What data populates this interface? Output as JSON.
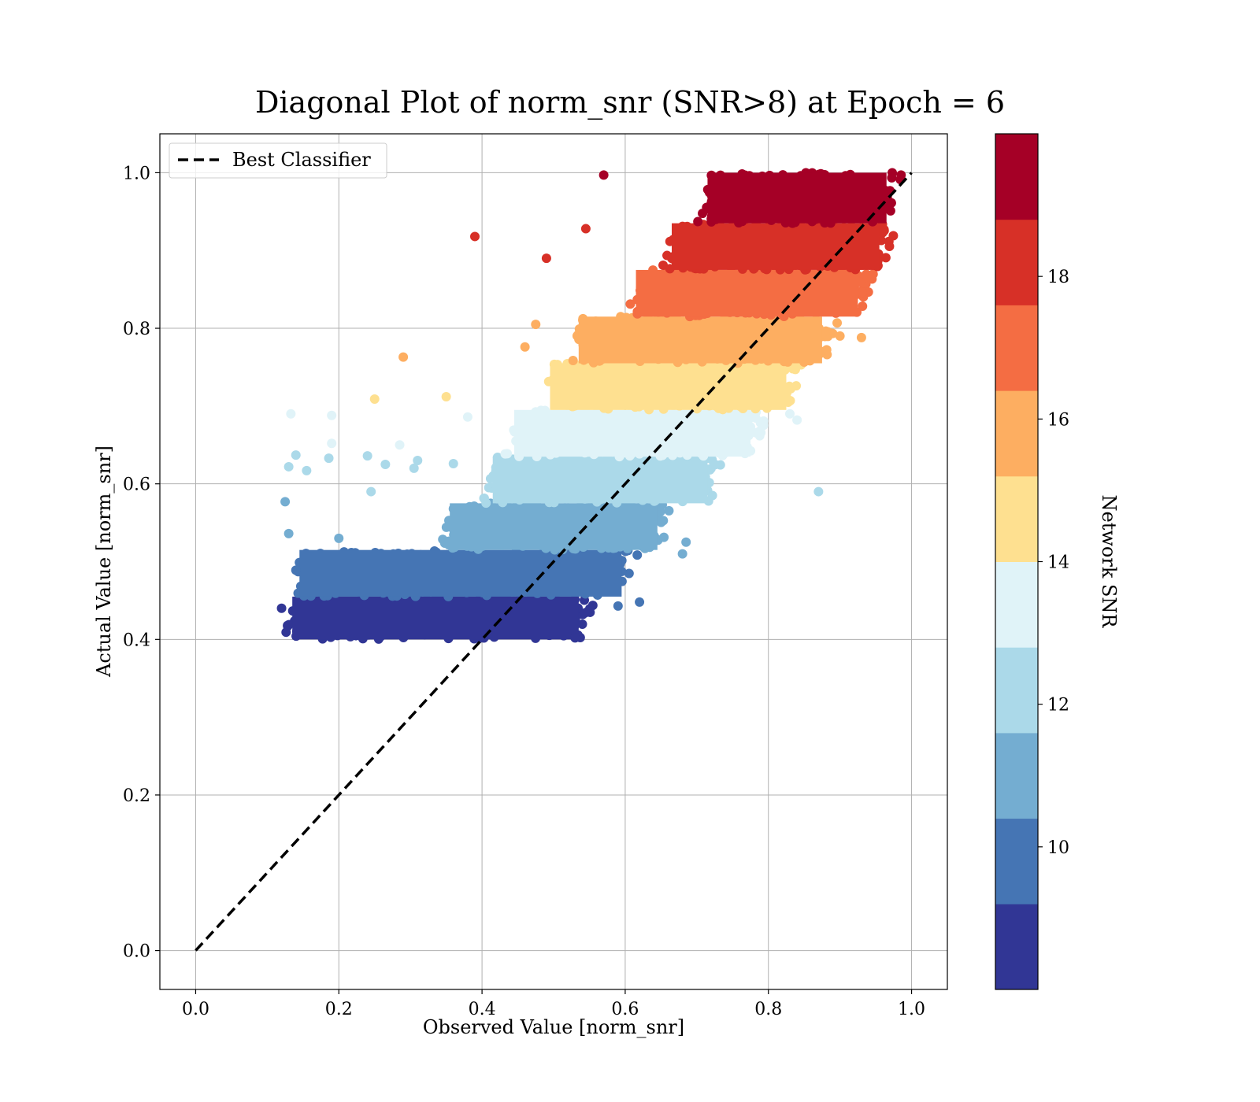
{
  "chart_data": {
    "type": "scatter",
    "title": "Diagonal Plot of norm_snr (SNR>8) at Epoch = 6",
    "xlabel": "Observed Value [norm_snr]",
    "ylabel": "Actual Value [norm_snr]",
    "xlim": [
      -0.05,
      1.05
    ],
    "ylim": [
      -0.05,
      1.05
    ],
    "x_ticks": [
      "0.0",
      "0.2",
      "0.4",
      "0.6",
      "0.8",
      "1.0"
    ],
    "y_ticks": [
      "0.0",
      "0.2",
      "0.4",
      "0.6",
      "0.8",
      "1.0"
    ],
    "grid": true,
    "legend": {
      "position": "top-left",
      "entries": [
        "Best Classifier"
      ]
    },
    "reference_line": {
      "name": "Best Classifier",
      "style": "dashed",
      "color": "#000000",
      "x": [
        0.0,
        1.0
      ],
      "y": [
        0.0,
        1.0
      ]
    },
    "colorbar": {
      "label": "Network SNR",
      "range": [
        8,
        20
      ],
      "ticks": [
        "10",
        "12",
        "14",
        "16",
        "18"
      ],
      "tick_values": [
        10,
        12,
        14,
        16,
        18
      ],
      "colors": [
        "#313695",
        "#4575b4",
        "#74add1",
        "#abd9e9",
        "#e0f3f8",
        "#fee090",
        "#fdae61",
        "#f46d43",
        "#d73027",
        "#a50026"
      ]
    },
    "bands": [
      {
        "snr_range": [
          8.0,
          9.2
        ],
        "color": "#313695",
        "y_range": [
          0.4,
          0.455
        ],
        "x_range": [
          0.12,
          0.54
        ]
      },
      {
        "snr_range": [
          9.2,
          10.4
        ],
        "color": "#4575b4",
        "y_range": [
          0.455,
          0.515
        ],
        "x_range": [
          0.13,
          0.6
        ]
      },
      {
        "snr_range": [
          10.4,
          11.6
        ],
        "color": "#74add1",
        "y_range": [
          0.515,
          0.575
        ],
        "x_range": [
          0.34,
          0.65
        ]
      },
      {
        "snr_range": [
          11.6,
          12.8
        ],
        "color": "#abd9e9",
        "y_range": [
          0.575,
          0.635
        ],
        "x_range": [
          0.4,
          0.72
        ]
      },
      {
        "snr_range": [
          12.8,
          14.0
        ],
        "color": "#e0f3f8",
        "y_range": [
          0.635,
          0.695
        ],
        "x_range": [
          0.43,
          0.78
        ]
      },
      {
        "snr_range": [
          14.0,
          15.2
        ],
        "color": "#fee090",
        "y_range": [
          0.695,
          0.755
        ],
        "x_range": [
          0.48,
          0.83
        ]
      },
      {
        "snr_range": [
          15.2,
          16.4
        ],
        "color": "#fdae61",
        "y_range": [
          0.755,
          0.815
        ],
        "x_range": [
          0.52,
          0.88
        ]
      },
      {
        "snr_range": [
          16.4,
          17.6
        ],
        "color": "#f46d43",
        "y_range": [
          0.815,
          0.875
        ],
        "x_range": [
          0.6,
          0.93
        ]
      },
      {
        "snr_range": [
          17.6,
          18.8
        ],
        "color": "#d73027",
        "y_range": [
          0.875,
          0.935
        ],
        "x_range": [
          0.65,
          0.96
        ]
      },
      {
        "snr_range": [
          18.8,
          20.0
        ],
        "color": "#a50026",
        "y_range": [
          0.935,
          1.0
        ],
        "x_range": [
          0.7,
          0.97
        ]
      }
    ],
    "outliers": [
      {
        "x": 0.57,
        "y": 0.997,
        "color": "#a50026"
      },
      {
        "x": 0.39,
        "y": 0.918,
        "color": "#d73027"
      },
      {
        "x": 0.49,
        "y": 0.89,
        "color": "#d73027"
      },
      {
        "x": 0.545,
        "y": 0.928,
        "color": "#d73027"
      },
      {
        "x": 0.29,
        "y": 0.763,
        "color": "#fdae61"
      },
      {
        "x": 0.25,
        "y": 0.709,
        "color": "#fee090"
      },
      {
        "x": 0.35,
        "y": 0.712,
        "color": "#fee090"
      },
      {
        "x": 0.133,
        "y": 0.69,
        "color": "#e0f3f8"
      },
      {
        "x": 0.19,
        "y": 0.688,
        "color": "#e0f3f8"
      },
      {
        "x": 0.19,
        "y": 0.652,
        "color": "#e0f3f8"
      },
      {
        "x": 0.285,
        "y": 0.65,
        "color": "#e0f3f8"
      },
      {
        "x": 0.38,
        "y": 0.686,
        "color": "#e0f3f8"
      },
      {
        "x": 0.24,
        "y": 0.636,
        "color": "#abd9e9"
      },
      {
        "x": 0.14,
        "y": 0.637,
        "color": "#abd9e9"
      },
      {
        "x": 0.186,
        "y": 0.633,
        "color": "#abd9e9"
      },
      {
        "x": 0.13,
        "y": 0.622,
        "color": "#abd9e9"
      },
      {
        "x": 0.155,
        "y": 0.617,
        "color": "#abd9e9"
      },
      {
        "x": 0.265,
        "y": 0.625,
        "color": "#abd9e9"
      },
      {
        "x": 0.305,
        "y": 0.62,
        "color": "#abd9e9"
      },
      {
        "x": 0.36,
        "y": 0.626,
        "color": "#abd9e9"
      },
      {
        "x": 0.31,
        "y": 0.63,
        "color": "#abd9e9"
      },
      {
        "x": 0.245,
        "y": 0.59,
        "color": "#abd9e9"
      },
      {
        "x": 0.87,
        "y": 0.59,
        "color": "#abd9e9"
      },
      {
        "x": 0.74,
        "y": 0.64,
        "color": "#e0f3f8"
      },
      {
        "x": 0.84,
        "y": 0.682,
        "color": "#e0f3f8"
      },
      {
        "x": 0.83,
        "y": 0.69,
        "color": "#e0f3f8"
      },
      {
        "x": 0.9,
        "y": 0.79,
        "color": "#fdae61"
      },
      {
        "x": 0.93,
        "y": 0.788,
        "color": "#fdae61"
      },
      {
        "x": 0.46,
        "y": 0.776,
        "color": "#fdae61"
      },
      {
        "x": 0.475,
        "y": 0.805,
        "color": "#fdae61"
      },
      {
        "x": 0.125,
        "y": 0.577,
        "color": "#74add1"
      },
      {
        "x": 0.13,
        "y": 0.536,
        "color": "#74add1"
      },
      {
        "x": 0.2,
        "y": 0.53,
        "color": "#74add1"
      },
      {
        "x": 0.685,
        "y": 0.525,
        "color": "#74add1"
      },
      {
        "x": 0.68,
        "y": 0.51,
        "color": "#74add1"
      },
      {
        "x": 0.62,
        "y": 0.448,
        "color": "#4575b4"
      },
      {
        "x": 0.59,
        "y": 0.443,
        "color": "#4575b4"
      },
      {
        "x": 0.14,
        "y": 0.489,
        "color": "#4575b4"
      },
      {
        "x": 0.12,
        "y": 0.44,
        "color": "#313695"
      },
      {
        "x": 0.53,
        "y": 0.402,
        "color": "#313695"
      }
    ]
  }
}
